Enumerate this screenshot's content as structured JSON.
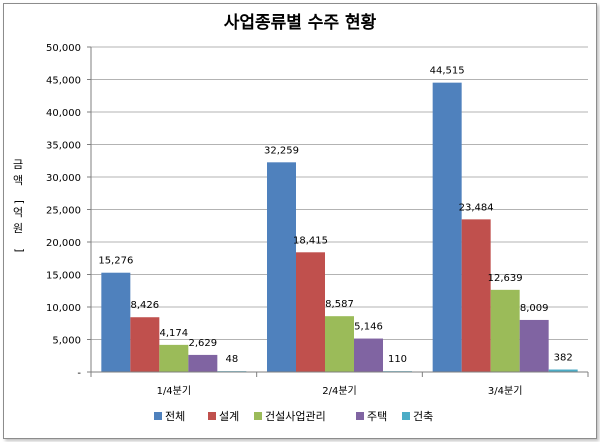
{
  "chart_data": {
    "type": "bar",
    "title": "사업종류별 수주 현황",
    "ylabel": "금액[억원]",
    "xlabel": "",
    "categories": [
      "1/4분기",
      "2/4분기",
      "3/4분기"
    ],
    "ylim": [
      0,
      50000
    ],
    "yticks": [
      0,
      5000,
      10000,
      15000,
      20000,
      25000,
      30000,
      35000,
      40000,
      45000,
      50000
    ],
    "ytick_labels": [
      "-",
      "5,000",
      "10,000",
      "15,000",
      "20,000",
      "25,000",
      "30,000",
      "35,000",
      "40,000",
      "45,000",
      "50,000"
    ],
    "grid": true,
    "legend_position": "bottom",
    "series": [
      {
        "name": "전체",
        "color": "#4f81bd",
        "values": [
          15276,
          32259,
          44515
        ],
        "labels": [
          "15,276",
          "32,259",
          "44,515"
        ]
      },
      {
        "name": "설계",
        "color": "#c0504d",
        "values": [
          8426,
          18415,
          23484
        ],
        "labels": [
          "8,426",
          "18,415",
          "23,484"
        ]
      },
      {
        "name": "건설사업관리",
        "color": "#9bbb59",
        "values": [
          4174,
          8587,
          12639
        ],
        "labels": [
          "4,174",
          "8,587",
          "12,639"
        ]
      },
      {
        "name": "주택",
        "color": "#8064a2",
        "values": [
          2629,
          5146,
          8009
        ],
        "labels": [
          "2,629",
          "5,146",
          "8,009"
        ]
      },
      {
        "name": "건축",
        "color": "#4bacc6",
        "values": [
          48,
          110,
          382
        ],
        "labels": [
          "48",
          "110",
          "382"
        ]
      }
    ]
  }
}
